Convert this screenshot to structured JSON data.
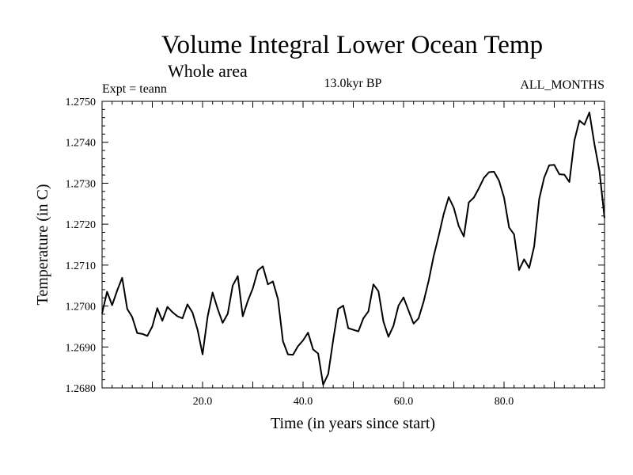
{
  "chart_data": {
    "type": "line",
    "title": "Volume Integral Lower Ocean Temp",
    "subtitle": "Whole area",
    "expt_label": "Expt = teann",
    "period_label": "13.0kyr BP",
    "months_label": "ALL_MONTHS",
    "xlabel": "Time (in years since start)",
    "ylabel": "Temperature (in C)",
    "xlim": [
      0,
      100
    ],
    "ylim": [
      1.268,
      1.275
    ],
    "grid": false,
    "x_ticks": [
      20,
      40,
      60,
      80
    ],
    "x_tick_labels": [
      "20.0",
      "40.0",
      "60.0",
      "80.0"
    ],
    "y_ticks": [
      1.268,
      1.269,
      1.27,
      1.271,
      1.272,
      1.273,
      1.274,
      1.275
    ],
    "y_tick_labels": [
      "1.2680",
      "1.2690",
      "1.2700",
      "1.2710",
      "1.2720",
      "1.2730",
      "1.2740",
      "1.2750"
    ],
    "series": [
      {
        "name": "teann",
        "x": [
          0,
          1,
          2,
          3,
          4,
          5,
          6,
          7,
          8,
          9,
          10,
          11,
          12,
          13,
          14,
          15,
          16,
          17,
          18,
          19,
          20,
          21,
          22,
          23,
          24,
          25,
          26,
          27,
          28,
          29,
          30,
          31,
          32,
          33,
          34,
          35,
          36,
          37,
          38,
          39,
          40,
          41,
          42,
          43,
          44,
          45,
          46,
          47,
          48,
          49,
          50,
          51,
          52,
          53,
          54,
          55,
          56,
          57,
          58,
          59,
          60,
          61,
          62,
          63,
          64,
          65,
          66,
          67,
          68,
          69,
          70,
          71,
          72,
          73,
          74,
          75,
          76,
          77,
          78,
          79,
          80,
          81,
          82,
          83,
          84,
          85,
          86,
          87,
          88,
          89,
          90,
          91,
          92,
          93,
          94,
          95,
          96,
          97,
          98,
          99,
          100
        ],
        "values": [
          1.26982,
          1.27035,
          1.27002,
          1.27038,
          1.27069,
          1.26993,
          1.26973,
          1.26934,
          1.26932,
          1.26927,
          1.2695,
          1.26995,
          1.26964,
          1.26998,
          1.26985,
          1.26975,
          1.2697,
          1.27004,
          1.26984,
          1.26942,
          1.26882,
          1.26974,
          1.27033,
          1.26993,
          1.26959,
          1.26981,
          1.2705,
          1.27073,
          1.26975,
          1.27012,
          1.27043,
          1.27087,
          1.27097,
          1.27053,
          1.2706,
          1.27017,
          1.26914,
          1.26882,
          1.26881,
          1.26902,
          1.26916,
          1.26935,
          1.26894,
          1.26884,
          1.26808,
          1.26834,
          1.26917,
          1.26993,
          1.27001,
          1.26946,
          1.26942,
          1.26938,
          1.2697,
          1.26987,
          1.27053,
          1.27036,
          1.26962,
          1.26925,
          1.26952,
          1.27001,
          1.27021,
          1.26989,
          1.26957,
          1.2697,
          1.27011,
          1.27062,
          1.27122,
          1.27172,
          1.27225,
          1.27266,
          1.2724,
          1.27195,
          1.2717,
          1.27253,
          1.27265,
          1.27288,
          1.27313,
          1.27327,
          1.27328,
          1.27306,
          1.27265,
          1.27192,
          1.27175,
          1.27088,
          1.27114,
          1.27093,
          1.27146,
          1.27262,
          1.27314,
          1.27344,
          1.27345,
          1.27322,
          1.27321,
          1.27303,
          1.27404,
          1.27453,
          1.27443,
          1.27473,
          1.27395,
          1.2733,
          1.27215
        ]
      }
    ]
  }
}
